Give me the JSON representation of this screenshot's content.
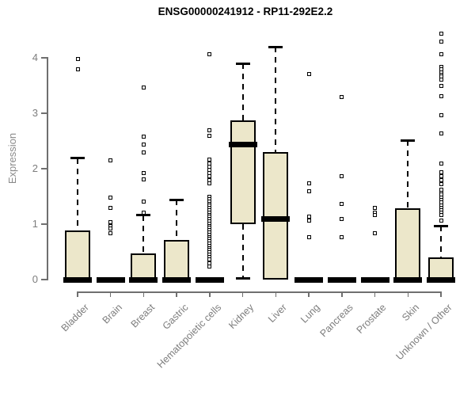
{
  "chart_data": {
    "type": "boxplot",
    "title": "ENSG00000241912 - RP11-292E2.2",
    "ylabel": "Expression",
    "xlabel": "",
    "yticks": [
      0,
      1,
      2,
      3,
      4
    ],
    "ylim": [
      0,
      4.45
    ],
    "grid": false,
    "legend": "none",
    "categories": [
      "Bladder",
      "Brain",
      "Breast",
      "Gastric",
      "Hematopoietic cells",
      "Kidney",
      "Liver",
      "Lung",
      "Pancreas",
      "Prostate",
      "Skin",
      "Unknown / Other"
    ],
    "boxes": [
      {
        "category": "Bladder",
        "q1": 0,
        "median": 0,
        "q3": 0.89,
        "whisker_low": 0,
        "whisker_high": 2.19,
        "outliers": [
          3.98,
          3.79
        ]
      },
      {
        "category": "Brain",
        "q1": 0,
        "median": 0,
        "q3": 0,
        "whisker_low": 0,
        "whisker_high": 0,
        "degenerate": true,
        "outliers": [
          2.15,
          1.48,
          1.3,
          1.03,
          0.97,
          0.92,
          0.84
        ]
      },
      {
        "category": "Breast",
        "q1": 0,
        "median": 0,
        "q3": 0.47,
        "whisker_low": 0,
        "whisker_high": 1.16,
        "outliers": [
          3.47,
          2.58,
          2.43,
          2.29,
          1.92,
          1.81,
          1.41,
          1.21
        ]
      },
      {
        "category": "Gastric",
        "q1": 0,
        "median": 0,
        "q3": 0.71,
        "whisker_low": 0,
        "whisker_high": 1.44,
        "outliers": []
      },
      {
        "category": "Hematopoietic cells",
        "q1": 0,
        "median": 0,
        "q3": 0,
        "whisker_low": 0,
        "whisker_high": 0,
        "degenerate": true,
        "outliers": [
          4.07,
          2.69,
          2.6,
          2.16,
          2.1,
          2.04,
          1.98,
          1.92,
          1.86,
          1.8,
          1.74,
          1.49,
          1.45,
          1.41,
          1.37,
          1.33,
          1.29,
          1.25,
          1.21,
          1.17,
          1.13,
          1.09,
          1.05,
          1.01,
          0.97,
          0.93,
          0.89,
          0.85,
          0.81,
          0.77,
          0.73,
          0.69,
          0.65,
          0.61,
          0.57,
          0.53,
          0.49,
          0.45,
          0.41,
          0.36,
          0.3,
          0.24
        ]
      },
      {
        "category": "Kidney",
        "q1": 1.0,
        "median": 2.43,
        "q3": 2.87,
        "whisker_low": 0.02,
        "whisker_high": 3.9,
        "outliers": []
      },
      {
        "category": "Liver",
        "q1": 0,
        "median": 1.1,
        "q3": 2.3,
        "whisker_low": 0,
        "whisker_high": 4.2,
        "outliers": []
      },
      {
        "category": "Lung",
        "q1": 0,
        "median": 0,
        "q3": 0,
        "whisker_low": 0,
        "whisker_high": 0,
        "degenerate": true,
        "outliers": [
          3.71,
          1.74,
          1.59,
          1.14,
          1.06,
          0.76
        ]
      },
      {
        "category": "Pancreas",
        "q1": 0,
        "median": 0,
        "q3": 0,
        "whisker_low": 0,
        "whisker_high": 0,
        "degenerate": true,
        "outliers": [
          3.29,
          1.86,
          1.36,
          1.1,
          0.76
        ]
      },
      {
        "category": "Prostate",
        "q1": 0,
        "median": 0,
        "q3": 0,
        "whisker_low": 0,
        "whisker_high": 0,
        "degenerate": true,
        "outliers": [
          1.3,
          1.21,
          1.17,
          0.84
        ]
      },
      {
        "category": "Skin",
        "q1": 0,
        "median": 0,
        "q3": 1.29,
        "whisker_low": 0,
        "whisker_high": 2.51,
        "outliers": []
      },
      {
        "category": "Unknown / Other",
        "q1": 0,
        "median": 0,
        "q3": 0.4,
        "whisker_low": 0,
        "whisker_high": 0.97,
        "outliers": [
          4.43,
          4.3,
          4.07,
          3.83,
          3.79,
          3.74,
          3.7,
          3.66,
          3.61,
          3.49,
          3.31,
          2.97,
          2.64,
          2.1,
          1.93,
          1.87,
          1.8,
          1.72,
          1.62,
          1.57,
          1.53,
          1.48,
          1.44,
          1.39,
          1.34,
          1.3,
          1.25,
          1.21,
          1.16,
          1.07
        ]
      }
    ],
    "colors": {
      "box_fill": "#ECE7CA",
      "box_border": "#000000",
      "median": "#000000",
      "axis_line": "#6f6f6f",
      "axis_text": "#7d7d7d",
      "title_text": "#000000",
      "background": "#ffffff"
    }
  }
}
